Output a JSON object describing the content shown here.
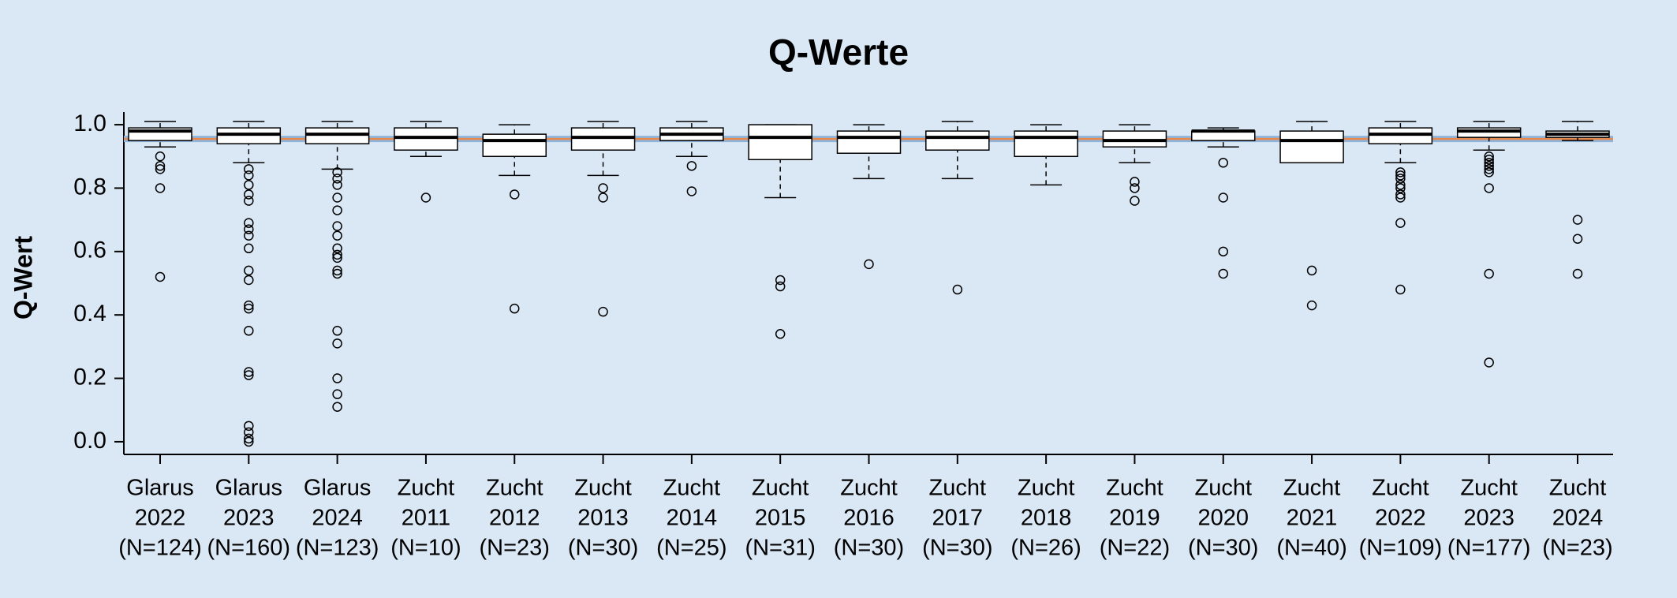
{
  "chart_data": {
    "type": "box",
    "title": "Q-Werte",
    "y_label": "Q-Wert",
    "categories": [
      [
        "Glarus",
        "2022",
        "(N=124)"
      ],
      [
        "Glarus",
        "2023",
        "(N=160)"
      ],
      [
        "Glarus",
        "2024",
        "(N=123)"
      ],
      [
        "Zucht",
        "2011",
        "(N=10)"
      ],
      [
        "Zucht",
        "2012",
        "(N=23)"
      ],
      [
        "Zucht",
        "2013",
        "(N=30)"
      ],
      [
        "Zucht",
        "2014",
        "(N=25)"
      ],
      [
        "Zucht",
        "2015",
        "(N=31)"
      ],
      [
        "Zucht",
        "2016",
        "(N=30)"
      ],
      [
        "Zucht",
        "2017",
        "(N=30)"
      ],
      [
        "Zucht",
        "2018",
        "(N=26)"
      ],
      [
        "Zucht",
        "2019",
        "(N=22)"
      ],
      [
        "Zucht",
        "2020",
        "(N=30)"
      ],
      [
        "Zucht",
        "2021",
        "(N=40)"
      ],
      [
        "Zucht",
        "2022",
        "(N=109)"
      ],
      [
        "Zucht",
        "2023",
        "(N=177)"
      ],
      [
        "Zucht",
        "2024",
        "(N=23)"
      ]
    ],
    "boxes": [
      {
        "low": 0.93,
        "q1": 0.95,
        "median": 0.98,
        "q3": 0.99,
        "high": 1.01,
        "outliers": [
          0.9,
          0.87,
          0.86,
          0.8,
          0.52
        ]
      },
      {
        "low": 0.88,
        "q1": 0.94,
        "median": 0.97,
        "q3": 0.99,
        "high": 1.01,
        "outliers": [
          0.86,
          0.84,
          0.81,
          0.78,
          0.76,
          0.69,
          0.67,
          0.65,
          0.61,
          0.54,
          0.51,
          0.43,
          0.42,
          0.35,
          0.22,
          0.21,
          0.05,
          0.03,
          0.01,
          0.0
        ]
      },
      {
        "low": 0.86,
        "q1": 0.94,
        "median": 0.97,
        "q3": 0.99,
        "high": 1.01,
        "outliers": [
          0.85,
          0.83,
          0.81,
          0.77,
          0.73,
          0.68,
          0.65,
          0.61,
          0.59,
          0.58,
          0.54,
          0.53,
          0.35,
          0.31,
          0.2,
          0.15,
          0.11
        ]
      },
      {
        "low": 0.9,
        "q1": 0.92,
        "median": 0.96,
        "q3": 0.99,
        "high": 1.01,
        "outliers": [
          0.77
        ]
      },
      {
        "low": 0.84,
        "q1": 0.9,
        "median": 0.95,
        "q3": 0.97,
        "high": 1.0,
        "outliers": [
          0.78,
          0.42
        ]
      },
      {
        "low": 0.84,
        "q1": 0.92,
        "median": 0.96,
        "q3": 0.99,
        "high": 1.01,
        "outliers": [
          0.8,
          0.77,
          0.41
        ]
      },
      {
        "low": 0.9,
        "q1": 0.95,
        "median": 0.97,
        "q3": 0.99,
        "high": 1.01,
        "outliers": [
          0.87,
          0.79
        ]
      },
      {
        "low": 0.77,
        "q1": 0.89,
        "median": 0.96,
        "q3": 1.0,
        "high": 1.0,
        "outliers": [
          0.51,
          0.49,
          0.34
        ]
      },
      {
        "low": 0.83,
        "q1": 0.91,
        "median": 0.96,
        "q3": 0.98,
        "high": 1.0,
        "outliers": [
          0.56
        ]
      },
      {
        "low": 0.83,
        "q1": 0.92,
        "median": 0.96,
        "q3": 0.98,
        "high": 1.01,
        "outliers": [
          0.48
        ]
      },
      {
        "low": 0.81,
        "q1": 0.9,
        "median": 0.96,
        "q3": 0.98,
        "high": 1.0,
        "outliers": []
      },
      {
        "low": 0.88,
        "q1": 0.93,
        "median": 0.95,
        "q3": 0.98,
        "high": 1.0,
        "outliers": [
          0.82,
          0.8,
          0.76
        ]
      },
      {
        "low": 0.93,
        "q1": 0.95,
        "median": 0.98,
        "q3": 0.98,
        "high": 0.99,
        "outliers": [
          0.88,
          0.77,
          0.6,
          0.53
        ]
      },
      {
        "low": 0.88,
        "q1": 0.88,
        "median": 0.95,
        "q3": 0.98,
        "high": 1.01,
        "outliers": [
          0.54,
          0.43
        ]
      },
      {
        "low": 0.88,
        "q1": 0.94,
        "median": 0.97,
        "q3": 0.99,
        "high": 1.01,
        "outliers": [
          0.85,
          0.84,
          0.83,
          0.81,
          0.8,
          0.78,
          0.77,
          0.69,
          0.48
        ]
      },
      {
        "low": 0.92,
        "q1": 0.96,
        "median": 0.98,
        "q3": 0.99,
        "high": 1.01,
        "outliers": [
          0.9,
          0.89,
          0.88,
          0.87,
          0.86,
          0.85,
          0.8,
          0.53,
          0.25
        ]
      },
      {
        "low": 0.95,
        "q1": 0.96,
        "median": 0.97,
        "q3": 0.98,
        "high": 1.01,
        "outliers": [
          0.7,
          0.64,
          0.53
        ]
      }
    ],
    "reference_lines": [
      {
        "value": 0.955,
        "color": "#8fb3d9"
      },
      {
        "value": 0.955,
        "color": "#e8884a"
      }
    ],
    "ylim": [
      -0.04,
      1.04
    ],
    "yticks": [
      {
        "value": 0,
        "label": "0.0"
      },
      0.2,
      0.4,
      0.6,
      0.8,
      {
        "value": 1,
        "label": "1.0"
      }
    ]
  }
}
